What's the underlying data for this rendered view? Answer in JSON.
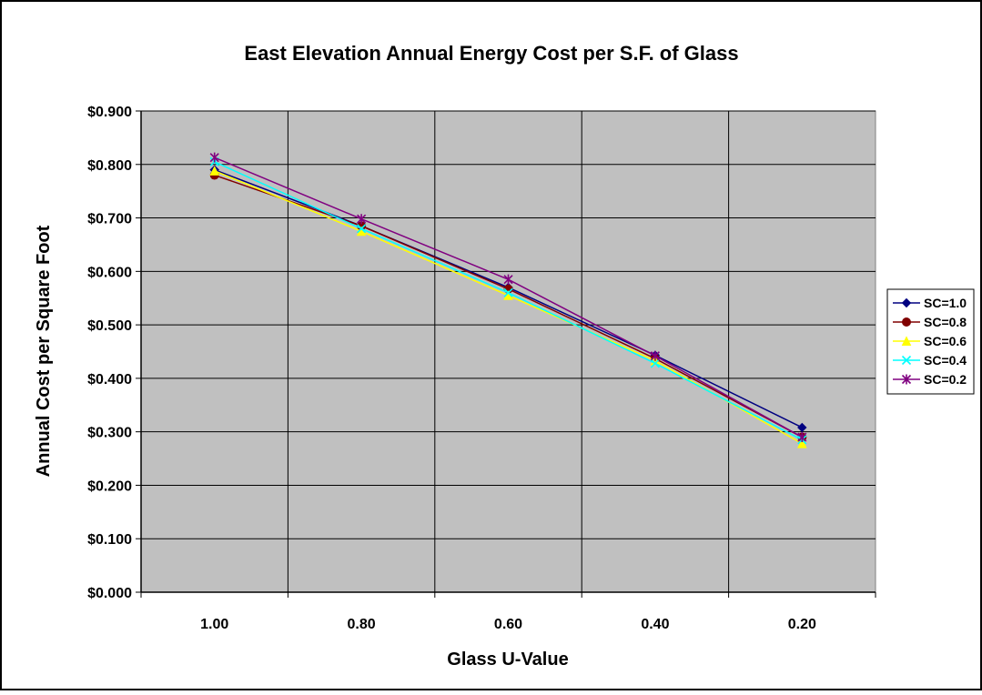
{
  "chart_data": {
    "type": "line",
    "title": "East Elevation Annual Energy Cost per S.F. of Glass",
    "xlabel": "Glass U-Value",
    "ylabel": "Annual Cost per Square Foot",
    "categories": [
      "1.00",
      "0.80",
      "0.60",
      "0.40",
      "0.20"
    ],
    "ylim": [
      0,
      0.9
    ],
    "yticks": [
      "$0.000",
      "$0.100",
      "$0.200",
      "$0.300",
      "$0.400",
      "$0.500",
      "$0.600",
      "$0.700",
      "$0.800",
      "$0.900"
    ],
    "grid": true,
    "legend_position": "right",
    "plot_background": "#c0c0c0",
    "series": [
      {
        "name": "SC=1.0",
        "color": "#000080",
        "marker": "diamond",
        "values": [
          0.79,
          0.685,
          0.57,
          0.443,
          0.308
        ]
      },
      {
        "name": "SC=0.8",
        "color": "#800000",
        "marker": "circle",
        "values": [
          0.78,
          0.685,
          0.567,
          0.437,
          0.29
        ]
      },
      {
        "name": "SC=0.6",
        "color": "#ffff00",
        "marker": "triangle",
        "values": [
          0.788,
          0.675,
          0.555,
          0.433,
          0.278
        ]
      },
      {
        "name": "SC=0.4",
        "color": "#00ffff",
        "marker": "x",
        "values": [
          0.805,
          0.68,
          0.56,
          0.428,
          0.285
        ]
      },
      {
        "name": "SC=0.2",
        "color": "#800080",
        "marker": "star",
        "values": [
          0.813,
          0.698,
          0.585,
          0.442,
          0.29
        ]
      }
    ]
  }
}
